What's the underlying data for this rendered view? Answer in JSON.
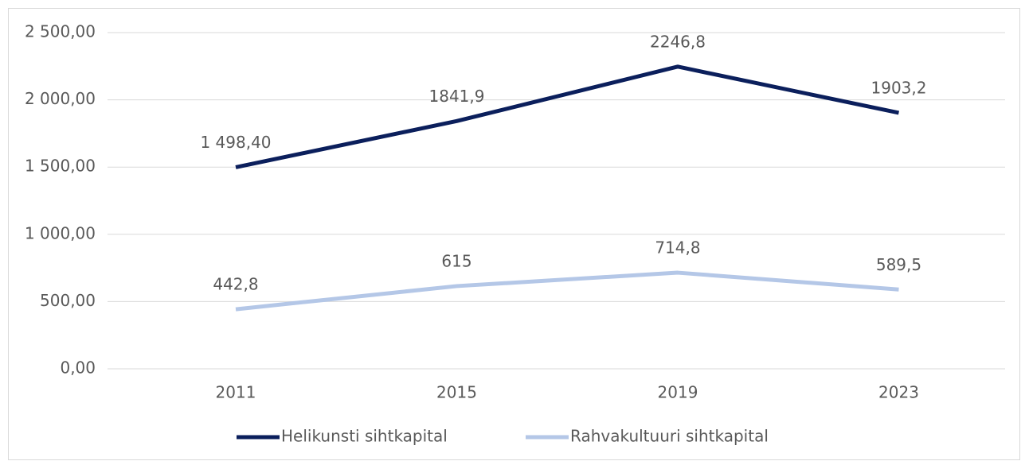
{
  "chart_data": {
    "type": "line",
    "categories": [
      "2011",
      "2015",
      "2019",
      "2023"
    ],
    "series": [
      {
        "name": "Helikunsti sihtkapital",
        "color": "#0b1f5c",
        "values": [
          1498.4,
          1841.9,
          2246.8,
          1903.2
        ],
        "value_labels": [
          "1 498,40",
          "1841,9",
          "2246,8",
          "1903,2"
        ]
      },
      {
        "name": "Rahvakultuuri sihtkapital",
        "color": "#b4c7e7",
        "values": [
          442.8,
          615,
          714.8,
          589.5
        ],
        "value_labels": [
          "442,8",
          "615",
          "714,8",
          "589,5"
        ]
      }
    ],
    "ylim": [
      0,
      2500
    ],
    "yticks": [
      {
        "value": 0,
        "label": "0,00"
      },
      {
        "value": 500,
        "label": "500,00"
      },
      {
        "value": 1000,
        "label": "1 000,00"
      },
      {
        "value": 1500,
        "label": "1 500,00"
      },
      {
        "value": 2000,
        "label": "2 000,00"
      },
      {
        "value": 2500,
        "label": "2 500,00"
      }
    ],
    "grid": true,
    "legend": "bottom"
  }
}
